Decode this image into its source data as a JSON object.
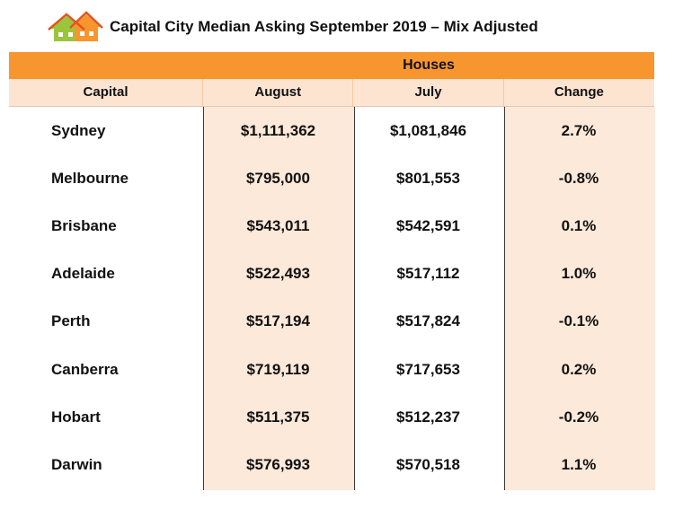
{
  "title": "Capital City Median Asking September 2019 – Mix Adjusted",
  "logo_icon": "house-logo-icon",
  "colors": {
    "band": "#f7962e",
    "header_bg": "#fde4d1",
    "shade": "#fde9da"
  },
  "group_header": "Houses",
  "columns": [
    "Capital",
    "August",
    "July",
    "Change"
  ],
  "chart_data": {
    "type": "table",
    "title": "Capital City Median Asking September 2019 – Mix Adjusted",
    "group_header": "Houses",
    "columns": [
      "Capital",
      "August",
      "July",
      "Change"
    ],
    "rows": [
      {
        "capital": "Sydney",
        "august": "$1,111,362",
        "july": "$1,081,846",
        "change": "2.7%"
      },
      {
        "capital": "Melbourne",
        "august": "$795,000",
        "july": "$801,553",
        "change": "-0.8%"
      },
      {
        "capital": "Brisbane",
        "august": "$543,011",
        "july": "$542,591",
        "change": "0.1%"
      },
      {
        "capital": "Adelaide",
        "august": "$522,493",
        "july": "$517,112",
        "change": "1.0%"
      },
      {
        "capital": "Perth",
        "august": "$517,194",
        "july": "$517,824",
        "change": "-0.1%"
      },
      {
        "capital": "Canberra",
        "august": "$719,119",
        "july": "$717,653",
        "change": "0.2%"
      },
      {
        "capital": "Hobart",
        "august": "$511,375",
        "july": "$512,237",
        "change": "-0.2%"
      },
      {
        "capital": "Darwin",
        "august": "$576,993",
        "july": "$570,518",
        "change": "1.1%"
      }
    ]
  }
}
